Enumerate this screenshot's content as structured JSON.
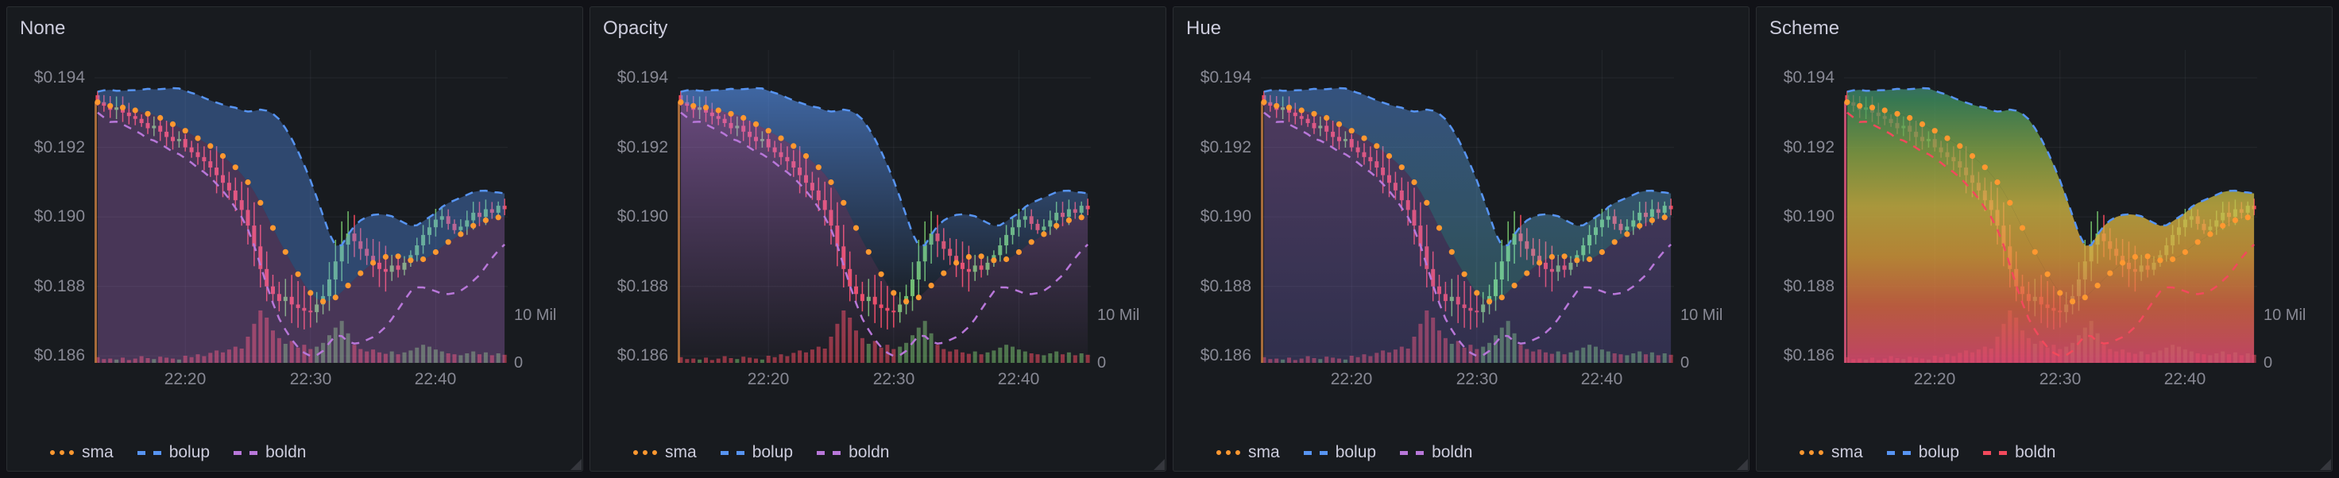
{
  "dashboard": {
    "background": "#111217",
    "panel_background": "#181b1f"
  },
  "panels": [
    {
      "title": "None",
      "gradient_mode": "none",
      "legend": [
        {
          "label": "sma",
          "color": "#ff9830",
          "style": "dotted"
        },
        {
          "label": "bolup",
          "color": "#5794f2",
          "style": "dashed"
        },
        {
          "label": "boldn",
          "color": "#b877d9",
          "style": "dashed"
        }
      ]
    },
    {
      "title": "Opacity",
      "gradient_mode": "opacity",
      "legend": [
        {
          "label": "sma",
          "color": "#ff9830",
          "style": "dotted"
        },
        {
          "label": "bolup",
          "color": "#5794f2",
          "style": "dashed"
        },
        {
          "label": "boldn",
          "color": "#b877d9",
          "style": "dashed"
        }
      ]
    },
    {
      "title": "Hue",
      "gradient_mode": "hue",
      "legend": [
        {
          "label": "sma",
          "color": "#ff9830",
          "style": "dotted"
        },
        {
          "label": "bolup",
          "color": "#5794f2",
          "style": "dashed"
        },
        {
          "label": "boldn",
          "color": "#b877d9",
          "style": "dashed"
        }
      ]
    },
    {
      "title": "Scheme",
      "gradient_mode": "scheme",
      "legend": [
        {
          "label": "sma",
          "color": "#ff9830",
          "style": "dotted"
        },
        {
          "label": "bolup",
          "color": "#5794f2",
          "style": "dashed"
        },
        {
          "label": "boldn",
          "color": "#f2495c",
          "style": "dashed"
        }
      ]
    }
  ],
  "chart_data": {
    "type": "candlestick",
    "shared_across_panels": true,
    "x_axis": {
      "tick_labels": [
        "22:20",
        "22:30",
        "22:40"
      ],
      "tick_indices": [
        14,
        34,
        54
      ]
    },
    "y_axis": {
      "tick_labels": [
        "$0.194",
        "$0.192",
        "$0.190",
        "$0.188",
        "$0.186"
      ],
      "tick_values": [
        0.194,
        0.192,
        0.19,
        0.188,
        0.186
      ],
      "range": [
        0.1858,
        0.1948
      ]
    },
    "right_axis": {
      "tick_labels": [
        "10 Mil",
        "0"
      ],
      "tick_values_mil": [
        10,
        0
      ]
    },
    "series": [
      {
        "name": "price",
        "type": "candlestick",
        "up_color": "#73bf69",
        "down_color": "#f2495c"
      },
      {
        "name": "sma",
        "type": "line",
        "line_style": "dotted",
        "color": "#ff9830"
      },
      {
        "name": "bolup",
        "type": "line",
        "line_style": "dashed",
        "color": "#5794f2"
      },
      {
        "name": "boldn",
        "type": "line",
        "line_style": "dashed",
        "color": "#b877d9"
      },
      {
        "name": "volume",
        "type": "bars",
        "axis": "right"
      }
    ],
    "close": [
      0.1933,
      0.1932,
      0.19308,
      0.19315,
      0.193,
      0.1929,
      0.19282,
      0.1927,
      0.19255,
      0.19262,
      0.19245,
      0.1923,
      0.19218,
      0.19224,
      0.192,
      0.19186,
      0.19172,
      0.1916,
      0.19142,
      0.1912,
      0.19098,
      0.19076,
      0.19048,
      0.1902,
      0.18975,
      0.18915,
      0.1885,
      0.188,
      0.18778,
      0.18758,
      0.1877,
      0.18748,
      0.18738,
      0.1873,
      0.18726,
      0.18748,
      0.18772,
      0.1882,
      0.18872,
      0.1892,
      0.18952,
      0.1893,
      0.18908,
      0.18888,
      0.18868,
      0.1885,
      0.18842,
      0.1886,
      0.18848,
      0.18868,
      0.1889,
      0.18918,
      0.18948,
      0.1897,
      0.18992,
      0.19002,
      0.1898,
      0.18962,
      0.18972,
      0.1899,
      0.19012,
      0.19,
      0.19022,
      0.19012,
      0.19032,
      0.19022
    ],
    "volume_mil": [
      1.2,
      0.8,
      0.9,
      0.7,
      1.1,
      0.6,
      0.9,
      1.4,
      1.0,
      0.8,
      1.3,
      1.1,
      0.9,
      0.7,
      1.5,
      1.2,
      1.8,
      1.4,
      2.1,
      2.6,
      2.2,
      2.8,
      3.4,
      3.0,
      5.5,
      8.2,
      11.0,
      9.5,
      6.8,
      5.2,
      4.0,
      4.6,
      3.2,
      3.8,
      2.9,
      3.4,
      4.2,
      5.8,
      7.4,
      8.8,
      6.2,
      3.8,
      2.9,
      2.4,
      2.8,
      2.2,
      1.9,
      2.4,
      1.8,
      2.2,
      2.6,
      3.2,
      3.8,
      3.4,
      2.8,
      2.4,
      2.0,
      1.8,
      1.6,
      2.0,
      2.4,
      1.8,
      2.2,
      1.6,
      2.0,
      1.7
    ]
  }
}
